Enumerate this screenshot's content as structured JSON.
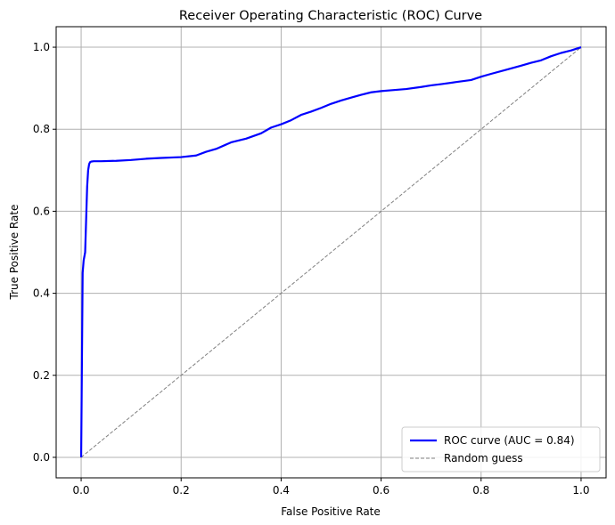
{
  "chart_data": {
    "type": "line",
    "title": "Receiver Operating Characteristic (ROC) Curve",
    "xlabel": "False Positive Rate",
    "ylabel": "True Positive Rate",
    "xlim": [
      -0.05,
      1.05
    ],
    "ylim": [
      -0.05,
      1.05
    ],
    "x_ticks": [
      0.0,
      0.2,
      0.4,
      0.6,
      0.8,
      1.0
    ],
    "y_ticks": [
      0.0,
      0.2,
      0.4,
      0.6,
      0.8,
      1.0
    ],
    "x_tick_labels": [
      "0.0",
      "0.2",
      "0.4",
      "0.6",
      "0.8",
      "1.0"
    ],
    "y_tick_labels": [
      "0.0",
      "0.2",
      "0.4",
      "0.6",
      "0.8",
      "1.0"
    ],
    "grid": true,
    "legend_position": "lower-right",
    "series": [
      {
        "name": "ROC curve (AUC = 0.84)",
        "color": "#0000ff",
        "style": "solid",
        "x": [
          0.0,
          0.002,
          0.003,
          0.005,
          0.008,
          0.01,
          0.012,
          0.014,
          0.016,
          0.018,
          0.02,
          0.025,
          0.04,
          0.07,
          0.1,
          0.13,
          0.16,
          0.2,
          0.23,
          0.25,
          0.27,
          0.3,
          0.33,
          0.36,
          0.38,
          0.4,
          0.42,
          0.44,
          0.46,
          0.48,
          0.5,
          0.52,
          0.54,
          0.56,
          0.58,
          0.6,
          0.62,
          0.65,
          0.68,
          0.7,
          0.72,
          0.75,
          0.78,
          0.8,
          0.82,
          0.85,
          0.88,
          0.9,
          0.92,
          0.94,
          0.96,
          0.98,
          1.0
        ],
        "y": [
          0.0,
          0.3,
          0.45,
          0.48,
          0.5,
          0.58,
          0.66,
          0.7,
          0.715,
          0.72,
          0.721,
          0.722,
          0.722,
          0.723,
          0.725,
          0.728,
          0.73,
          0.732,
          0.736,
          0.745,
          0.752,
          0.768,
          0.777,
          0.79,
          0.804,
          0.812,
          0.822,
          0.835,
          0.843,
          0.852,
          0.862,
          0.87,
          0.877,
          0.884,
          0.89,
          0.893,
          0.895,
          0.898,
          0.903,
          0.907,
          0.91,
          0.915,
          0.92,
          0.928,
          0.935,
          0.945,
          0.955,
          0.962,
          0.968,
          0.978,
          0.986,
          0.992,
          1.0
        ]
      },
      {
        "name": "Random guess",
        "color": "#808080",
        "style": "dashed",
        "x": [
          0.0,
          1.0
        ],
        "y": [
          0.0,
          1.0
        ]
      }
    ]
  }
}
